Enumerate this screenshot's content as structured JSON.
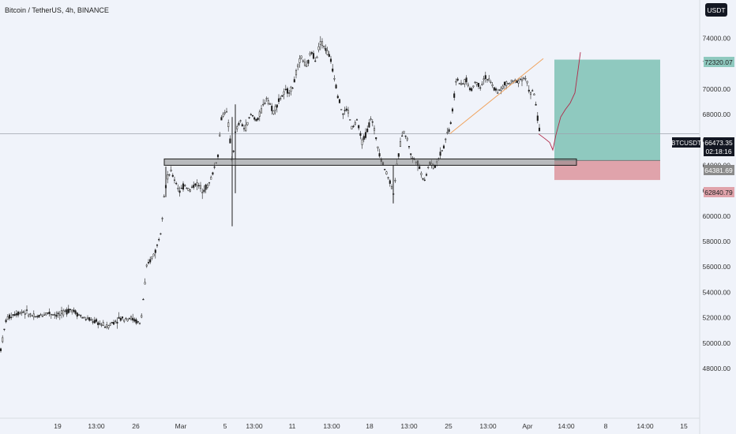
{
  "header": {
    "title": "Bitcoin / TetherUS, 4h, BINANCE",
    "currency_button": "USDT"
  },
  "price_tags": {
    "target": "72320.07",
    "current_symbol": "BTCUSDT",
    "current_price": "66473.35",
    "countdown": "02:18:16",
    "entry": "64381.69",
    "stop": "62840.79"
  },
  "colors": {
    "background": "#f0f3fa",
    "candle": "#1f1f1f",
    "profit_zone": "#8fc9bf",
    "loss_zone": "#e0a3ab",
    "support_box": "#8a8a8a",
    "trendline": "#f0a35e",
    "projection": "#b02a4a"
  },
  "chart_data": {
    "type": "candlestick",
    "symbol": "BTCUSDT",
    "title": "Bitcoin / TetherUS, 4h, BINANCE",
    "y_ticks": [
      48000,
      50000,
      52000,
      54000,
      56000,
      58000,
      60000,
      62000,
      64000,
      66000,
      68000,
      70000,
      72000,
      74000
    ],
    "x_ticks": [
      "19",
      "13:00",
      "26",
      "Mar",
      "5",
      "13:00",
      "11",
      "13:00",
      "18",
      "13:00",
      "25",
      "13:00",
      "Apr",
      "14:00",
      "8",
      "14:00",
      "15"
    ],
    "ylim": [
      47000,
      75000
    ],
    "price_path": [
      [
        0,
        49200
      ],
      [
        8,
        51900
      ],
      [
        18,
        52300
      ],
      [
        30,
        52500
      ],
      [
        45,
        52000
      ],
      [
        60,
        52400
      ],
      [
        75,
        52200
      ],
      [
        90,
        52700
      ],
      [
        105,
        52000
      ],
      [
        120,
        51700
      ],
      [
        135,
        51300
      ],
      [
        150,
        51900
      ],
      [
        165,
        52000
      ],
      [
        178,
        51500
      ],
      [
        182,
        53800
      ],
      [
        186,
        56000
      ],
      [
        192,
        56700
      ],
      [
        198,
        57400
      ],
      [
        204,
        59000
      ],
      [
        208,
        61800
      ],
      [
        212,
        63000
      ],
      [
        216,
        63500
      ],
      [
        222,
        62800
      ],
      [
        228,
        61900
      ],
      [
        234,
        62500
      ],
      [
        240,
        62000
      ],
      [
        248,
        62600
      ],
      [
        256,
        62100
      ],
      [
        264,
        62400
      ],
      [
        270,
        63500
      ],
      [
        276,
        64800
      ],
      [
        280,
        67600
      ],
      [
        286,
        68500
      ],
      [
        290,
        66800
      ],
      [
        294,
        64200
      ],
      [
        298,
        66500
      ],
      [
        304,
        67500
      ],
      [
        310,
        66800
      ],
      [
        318,
        68000
      ],
      [
        326,
        67500
      ],
      [
        332,
        68500
      ],
      [
        338,
        69400
      ],
      [
        346,
        68200
      ],
      [
        354,
        69200
      ],
      [
        362,
        69800
      ],
      [
        370,
        70000
      ],
      [
        376,
        71500
      ],
      [
        382,
        72600
      ],
      [
        388,
        71600
      ],
      [
        394,
        73000
      ],
      [
        400,
        72300
      ],
      [
        406,
        73800
      ],
      [
        412,
        73200
      ],
      [
        418,
        72500
      ],
      [
        424,
        70800
      ],
      [
        428,
        69500
      ],
      [
        434,
        68000
      ],
      [
        440,
        68500
      ],
      [
        446,
        66800
      ],
      [
        452,
        67600
      ],
      [
        458,
        65800
      ],
      [
        464,
        66500
      ],
      [
        470,
        67800
      ],
      [
        476,
        66200
      ],
      [
        482,
        64600
      ],
      [
        488,
        63600
      ],
      [
        494,
        62700
      ],
      [
        498,
        61800
      ],
      [
        504,
        64500
      ],
      [
        510,
        66800
      ],
      [
        516,
        66000
      ],
      [
        522,
        64500
      ],
      [
        528,
        64400
      ],
      [
        534,
        63200
      ],
      [
        538,
        62900
      ],
      [
        544,
        64200
      ],
      [
        550,
        63800
      ],
      [
        556,
        64700
      ],
      [
        562,
        65500
      ],
      [
        566,
        66500
      ],
      [
        570,
        67000
      ],
      [
        574,
        68800
      ],
      [
        578,
        71000
      ],
      [
        584,
        70200
      ],
      [
        590,
        70800
      ],
      [
        596,
        69800
      ],
      [
        602,
        70600
      ],
      [
        608,
        70200
      ],
      [
        614,
        71000
      ],
      [
        620,
        70600
      ],
      [
        626,
        70000
      ],
      [
        632,
        69800
      ],
      [
        640,
        70400
      ],
      [
        648,
        70500
      ],
      [
        656,
        70700
      ],
      [
        664,
        70900
      ],
      [
        668,
        70400
      ],
      [
        672,
        69600
      ],
      [
        676,
        69800
      ],
      [
        680,
        68200
      ],
      [
        682,
        67000
      ],
      [
        684,
        66400
      ]
    ],
    "levels": {
      "target": 72320.07,
      "current": 66473.35,
      "entry": 64381.69,
      "stop": 62840.79
    },
    "support_zone": {
      "low": 64000,
      "high": 64500
    },
    "trendline": [
      [
        570,
        66500
      ],
      [
        688,
        72400
      ]
    ],
    "projection_path": [
      [
        682,
        66473
      ],
      [
        690,
        66100
      ],
      [
        696,
        65800
      ],
      [
        700,
        65200
      ],
      [
        704,
        66400
      ],
      [
        710,
        67800
      ],
      [
        716,
        68400
      ],
      [
        722,
        68900
      ],
      [
        728,
        69700
      ],
      [
        732,
        71500
      ],
      [
        735,
        72900
      ]
    ],
    "position": {
      "x_start": 702,
      "x_end": 836
    },
    "grid": false,
    "legend": "none"
  }
}
